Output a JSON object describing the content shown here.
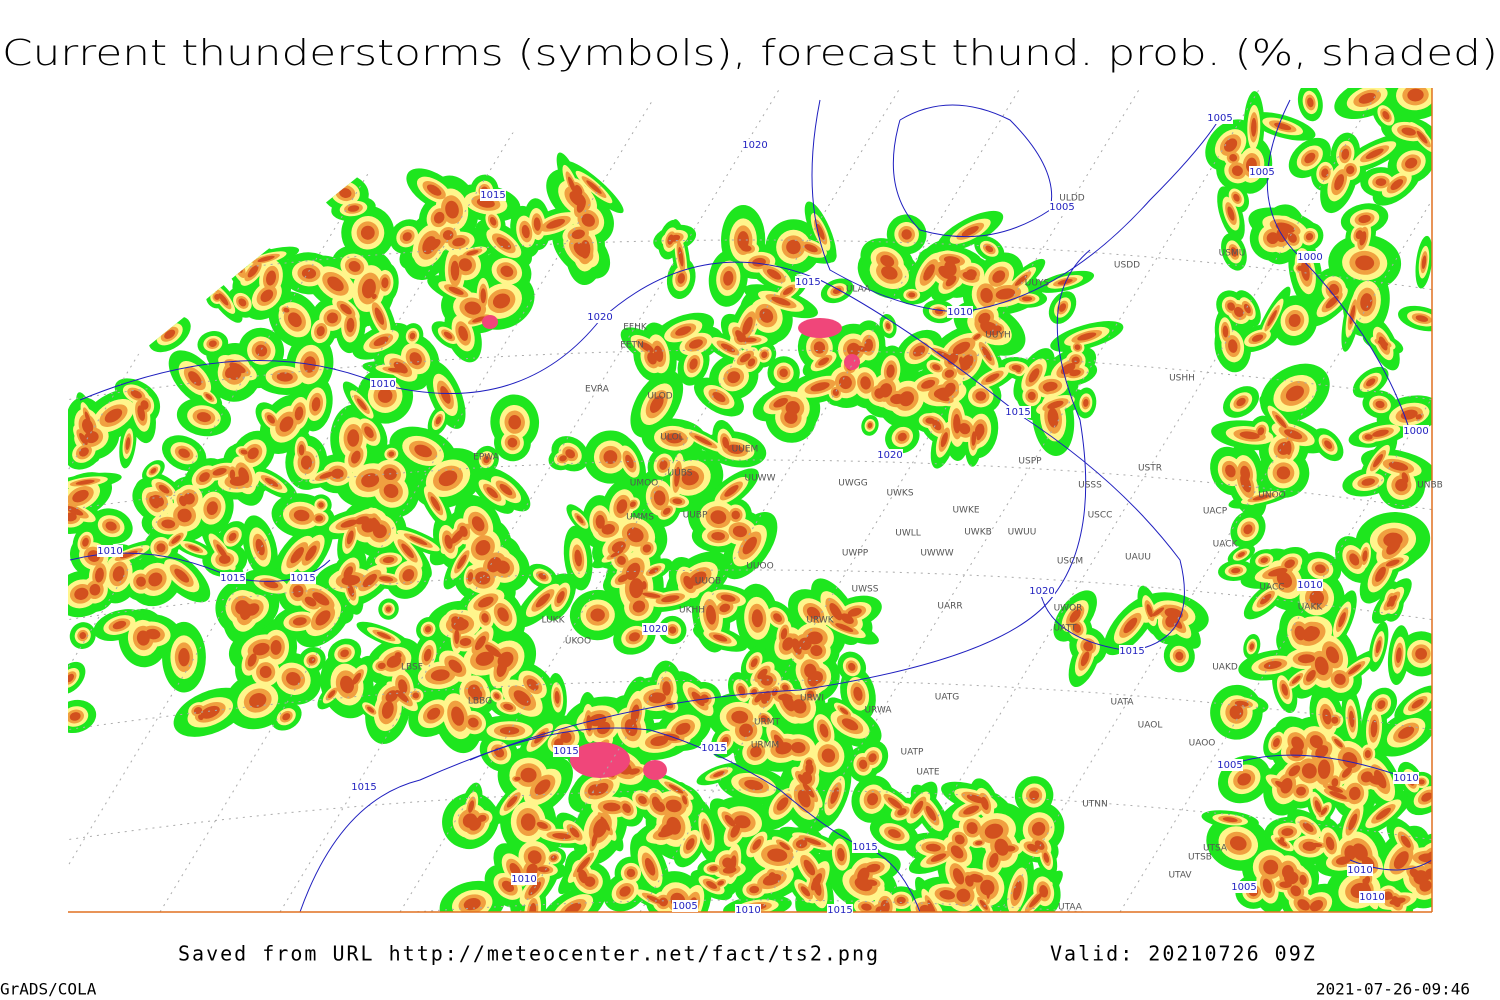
{
  "title": "Current thunderstorms (symbols), forecast thund. prob. (%, shaded)",
  "footer": {
    "source": "Saved from URL http://meteocenter.net/fact/ts2.png",
    "valid": "Valid: 20210726 09Z",
    "software": "GrADS/COLA",
    "timestamp": "2021-07-26-09:46"
  },
  "isobar_labels": [
    "1020",
    "1015",
    "1005",
    "1005",
    "1005",
    "1000",
    "1015",
    "1010",
    "1020",
    "1010",
    "1015",
    "1020",
    "1000",
    "1010",
    "1015",
    "1015",
    "1010",
    "1020",
    "1020",
    "1015",
    "1015",
    "1015",
    "1005",
    "1010",
    "1015",
    "1015",
    "1010",
    "1010",
    "1005",
    "1010",
    "1005",
    "1010",
    "1015"
  ],
  "stations": [
    "ULAA",
    "UUYS",
    "ULDD",
    "USDD",
    "USMU",
    "UUYH",
    "USHH",
    "ULOD",
    "ULOL",
    "UUEM",
    "UUWW",
    "UUBS",
    "UMOO",
    "UWGG",
    "UWKS",
    "USPP",
    "USTR",
    "USSS",
    "UNOO",
    "UNBB",
    "UWKE",
    "UWKB",
    "UWUU",
    "USCC",
    "UACP",
    "UACK",
    "UMMS",
    "UUBP",
    "UWLL",
    "UWWW",
    "UWPP",
    "USCM",
    "UAUU",
    "UUOO",
    "UUOB",
    "UWSS",
    "UARR",
    "UWOR",
    "UACC",
    "UAKK",
    "UKHH",
    "LUKK",
    "UKOO",
    "UATT",
    "URWK",
    "LBSF",
    "UAKD",
    "LBBG",
    "UATG",
    "URWI",
    "URWA",
    "URMT",
    "UATA",
    "UAOL",
    "URMM",
    "UAOO",
    "UATP",
    "UATE",
    "UTNN",
    "UTSA",
    "UTSB",
    "UTAV",
    "UTAA",
    "EPWA",
    "EFHK",
    "EETN",
    "EVRA"
  ]
}
